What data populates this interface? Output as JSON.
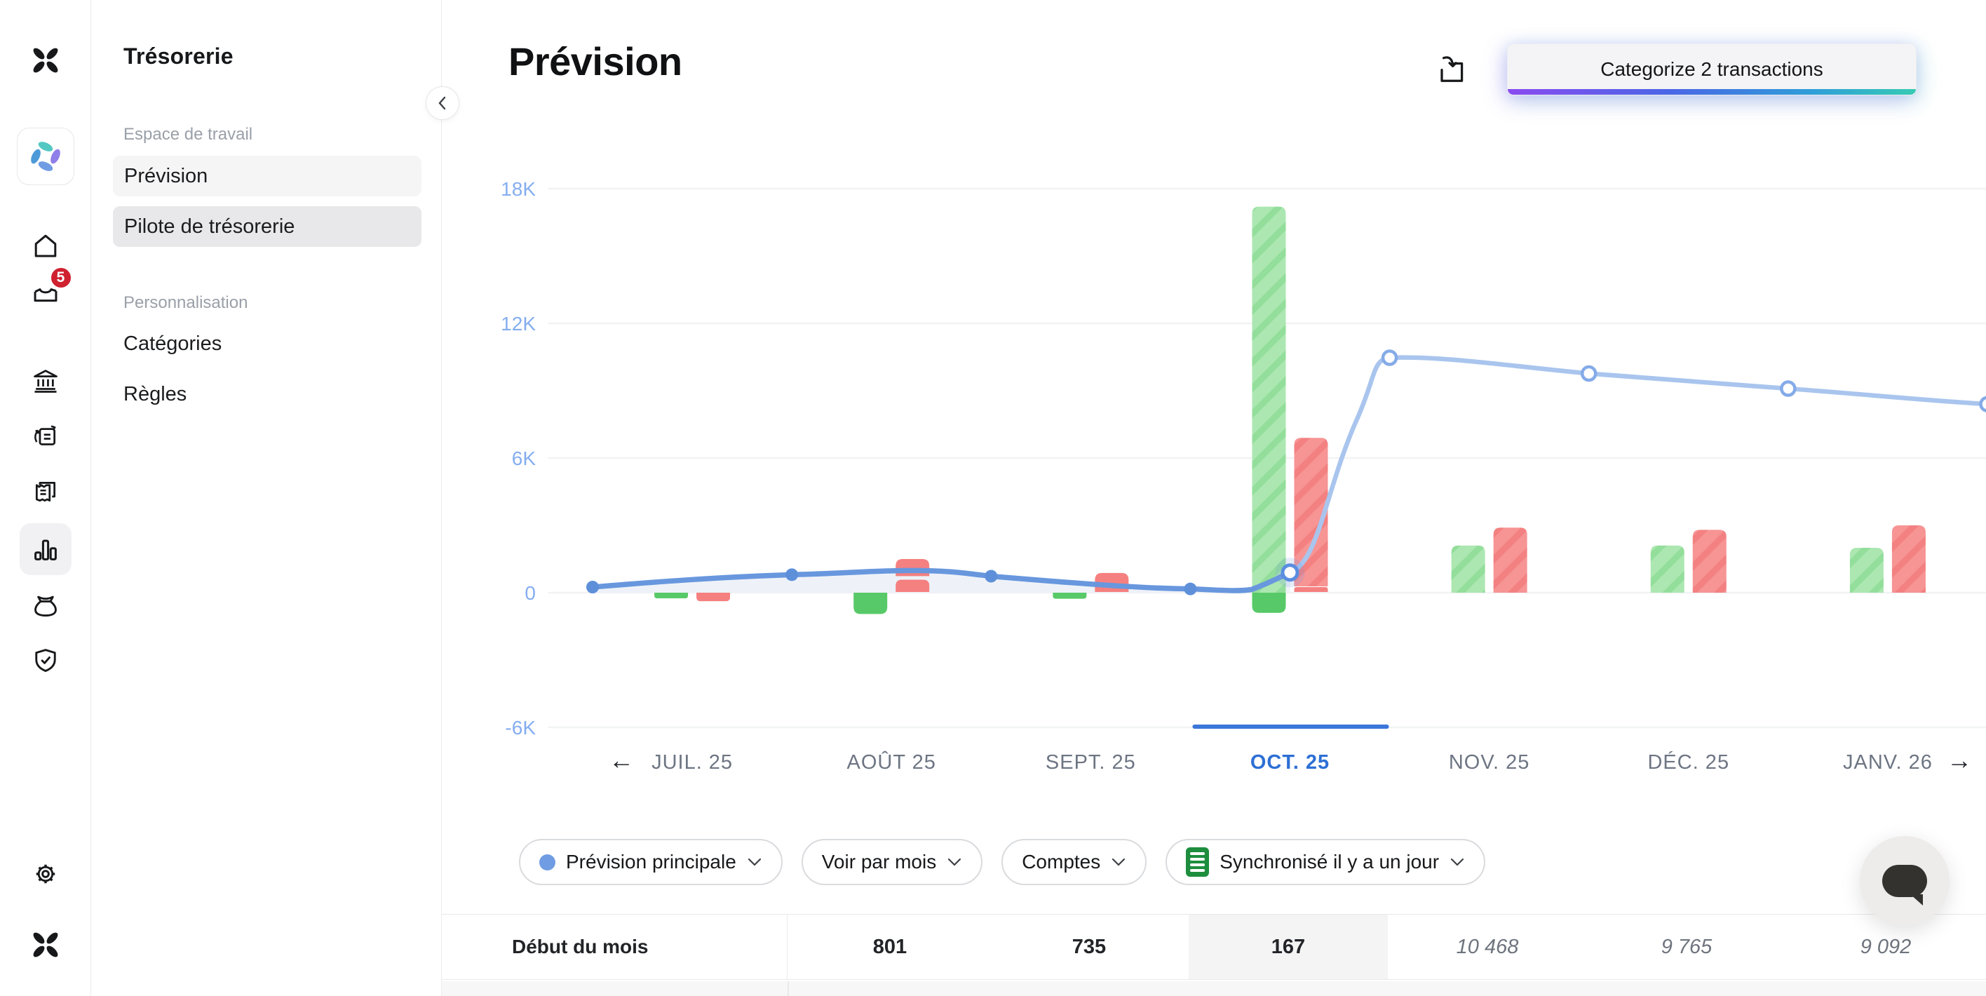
{
  "sidebar_rail": {
    "badge_count": "5",
    "icons": [
      "logo",
      "workspace",
      "home",
      "inbox",
      "bank",
      "transfers",
      "receipts",
      "analytics",
      "budget",
      "security",
      "settings",
      "logo-footer"
    ],
    "active_icon": "analytics"
  },
  "sidebar": {
    "title": "Trésorerie",
    "sections": [
      {
        "header": "Espace de travail",
        "items": [
          {
            "label": "Prévision"
          },
          {
            "label": "Pilote de trésorerie"
          }
        ]
      },
      {
        "header": "Personnalisation",
        "items": [
          {
            "label": "Catégories"
          },
          {
            "label": "Règles"
          }
        ]
      }
    ]
  },
  "header": {
    "title": "Prévision",
    "categorize_label": "Categorize 2 transactions"
  },
  "filters": {
    "forecast": "Prévision principale",
    "view_by": "Voir par mois",
    "accounts": "Comptes",
    "sync": "Synchronisé il y a un jour"
  },
  "table": {
    "row_label": "Début du mois",
    "columns": [
      {
        "month": "AOÛT 25",
        "value": "801",
        "style": "actual"
      },
      {
        "month": "SEPT. 25",
        "value": "735",
        "style": "actual"
      },
      {
        "month": "OCT. 25",
        "value": "167",
        "style": "actual",
        "highlight": true
      },
      {
        "month": "NOV. 25",
        "value": "10 468",
        "style": "forecast"
      },
      {
        "month": "DÉC. 25",
        "value": "9 765",
        "style": "forecast"
      },
      {
        "month": "JANV. 26",
        "value": "9 092",
        "style": "forecast"
      }
    ]
  },
  "chart_data": {
    "type": "mixed-bar-line",
    "title": "Prévision",
    "ylim": [
      -6000,
      18000
    ],
    "grid": true,
    "y_ticks": [
      {
        "label": "18K",
        "value": 18000
      },
      {
        "label": "12K",
        "value": 12000
      },
      {
        "label": "6K",
        "value": 6000
      },
      {
        "label": "0",
        "value": 0
      },
      {
        "label": "-6K",
        "value": -6000
      }
    ],
    "selected_month": "OCT. 25",
    "today": {
      "month_index": 3,
      "balance": 900
    },
    "next_month_start_balance": 8400,
    "months": [
      {
        "label": "JUIL. 25",
        "start_balance": 250,
        "cash_in": [
          {
            "from": -250,
            "to": 0,
            "style": "solid"
          }
        ],
        "cash_out": [
          {
            "from": -380,
            "to": 0,
            "style": "solid"
          }
        ]
      },
      {
        "label": "AOÛT 25",
        "start_balance": 801,
        "cash_in": [
          {
            "from": -950,
            "to": 0,
            "style": "solid"
          }
        ],
        "cash_out": [
          {
            "from": 30,
            "to": 580,
            "style": "solid"
          },
          {
            "from": 740,
            "to": 1500,
            "style": "solid"
          }
        ]
      },
      {
        "label": "SEPT. 25",
        "start_balance": 735,
        "cash_in": [
          {
            "from": -270,
            "to": 0,
            "style": "solid"
          }
        ],
        "cash_out": [
          {
            "from": 30,
            "to": 880,
            "style": "solid"
          }
        ]
      },
      {
        "label": "OCT. 25",
        "start_balance": 167,
        "cash_in": [
          {
            "from": 0,
            "to": 17200,
            "style": "hatch"
          },
          {
            "from": -900,
            "to": 0,
            "style": "solid"
          }
        ],
        "cash_out": [
          {
            "from": 280,
            "to": 6900,
            "style": "hatch"
          },
          {
            "from": 30,
            "to": 250,
            "style": "solid"
          }
        ]
      },
      {
        "label": "NOV. 25",
        "start_balance": 10468,
        "cash_in": [
          {
            "from": 0,
            "to": 2100,
            "style": "hatch"
          }
        ],
        "cash_out": [
          {
            "from": 0,
            "to": 2900,
            "style": "hatch"
          }
        ]
      },
      {
        "label": "DÉC. 25",
        "start_balance": 9765,
        "cash_in": [
          {
            "from": 0,
            "to": 2100,
            "style": "hatch"
          }
        ],
        "cash_out": [
          {
            "from": 0,
            "to": 2800,
            "style": "hatch"
          }
        ]
      },
      {
        "label": "JANV. 26",
        "start_balance": 9092,
        "cash_in": [
          {
            "from": 0,
            "to": 2000,
            "style": "hatch"
          }
        ],
        "cash_out": [
          {
            "from": 0,
            "to": 3000,
            "style": "hatch"
          }
        ]
      }
    ],
    "legend": {
      "history_line": "solid blue",
      "forecast_line": "light blue",
      "cash_in": "green",
      "cash_out": "red"
    }
  },
  "colors": {
    "history_line": "#6897de",
    "forecast_line": "#a9c5ee",
    "area_fill": "#eef2f8",
    "axis_label": "#85aef0",
    "month_label": "#6d7583",
    "month_selected": "#2d6fd4",
    "underline": "#3b76d9",
    "gridline": "#f1f2f4",
    "green_base": "#ace7b1",
    "green_stripe": "#93de9b",
    "green_solid": "#58c968",
    "red_base": "#f79494",
    "red_stripe": "#f38181",
    "red_solid": "#f58080",
    "badge_red": "#cf2130"
  }
}
